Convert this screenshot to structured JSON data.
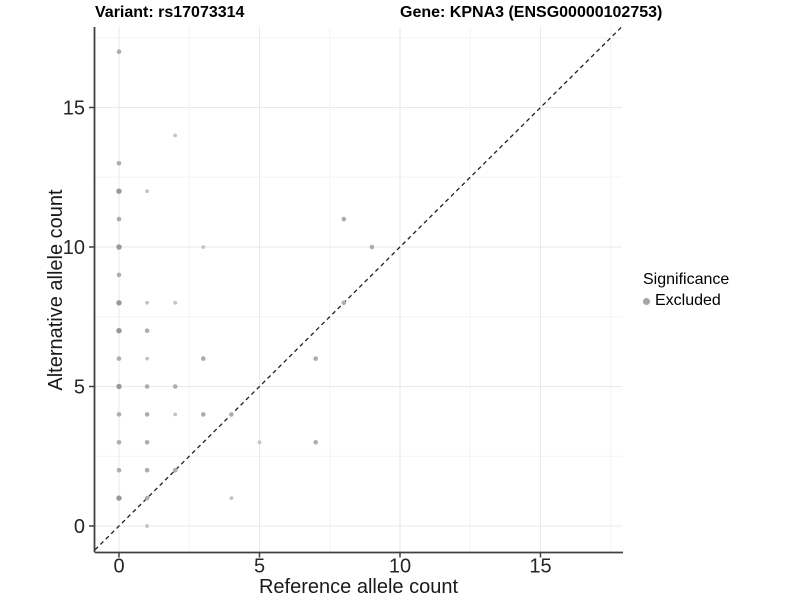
{
  "chart_data": {
    "type": "scatter",
    "title_left": "Variant: rs17073314",
    "title_right": "Gene: KPNA3 (ENSG00000102753)",
    "xlabel": "Reference allele count",
    "ylabel": "Alternative allele count",
    "x_ticks": [
      0,
      5,
      10,
      15
    ],
    "y_ticks": [
      0,
      5,
      10,
      15
    ],
    "x_minor": [
      2.5,
      7.5,
      12.5,
      17.5
    ],
    "y_minor": [
      2.5,
      7.5,
      12.5,
      17.5
    ],
    "xlim": [
      -0.85,
      17.9
    ],
    "ylim": [
      -0.9,
      17.9
    ],
    "grid": true,
    "legend_position": "right",
    "legend": {
      "title": "Significance",
      "items": [
        {
          "label": "Excluded",
          "color": "#a6a6a6"
        }
      ]
    },
    "identity_line": {
      "style": "dashed",
      "slope": 1,
      "intercept": 0,
      "color": "#1f1f1f"
    },
    "point_styles": {
      "1": {
        "r": 1.9,
        "color": "#c3c3c3"
      },
      "2": {
        "r": 2.3,
        "color": "#adadad"
      },
      "3": {
        "r": 2.7,
        "color": "#999999"
      }
    },
    "series": [
      {
        "name": "Excluded",
        "points": [
          [
            0,
            17,
            2
          ],
          [
            2,
            14,
            1
          ],
          [
            0,
            13,
            2
          ],
          [
            0,
            12,
            3
          ],
          [
            1,
            12,
            1
          ],
          [
            0,
            11,
            2
          ],
          [
            8,
            11,
            2
          ],
          [
            0,
            10,
            3
          ],
          [
            3,
            10,
            1
          ],
          [
            9,
            10,
            2
          ],
          [
            0,
            9,
            2
          ],
          [
            0,
            8,
            3
          ],
          [
            1,
            8,
            1
          ],
          [
            2,
            8,
            1
          ],
          [
            8,
            8,
            2
          ],
          [
            0,
            7,
            3
          ],
          [
            1,
            7,
            2
          ],
          [
            0,
            6,
            2
          ],
          [
            1,
            6,
            1
          ],
          [
            3,
            6,
            2
          ],
          [
            7,
            6,
            2
          ],
          [
            0,
            5,
            3
          ],
          [
            1,
            5,
            2
          ],
          [
            2,
            5,
            2
          ],
          [
            0,
            4,
            2
          ],
          [
            1,
            4,
            2
          ],
          [
            2,
            4,
            1
          ],
          [
            3,
            4,
            2
          ],
          [
            4,
            4,
            2
          ],
          [
            0,
            3,
            2
          ],
          [
            1,
            3,
            2
          ],
          [
            5,
            3,
            1
          ],
          [
            7,
            3,
            2
          ],
          [
            0,
            2,
            2
          ],
          [
            1,
            2,
            2
          ],
          [
            2,
            2,
            2
          ],
          [
            0,
            1,
            3
          ],
          [
            1,
            1,
            2
          ],
          [
            4,
            1,
            1
          ],
          [
            1,
            0,
            1
          ]
        ]
      }
    ],
    "colors": {
      "axis_line": "#404040",
      "tick_text": "#262626",
      "grid_major": "#e9e9e9",
      "grid_minor": "#f3f3f3",
      "background": "#ffffff"
    }
  }
}
